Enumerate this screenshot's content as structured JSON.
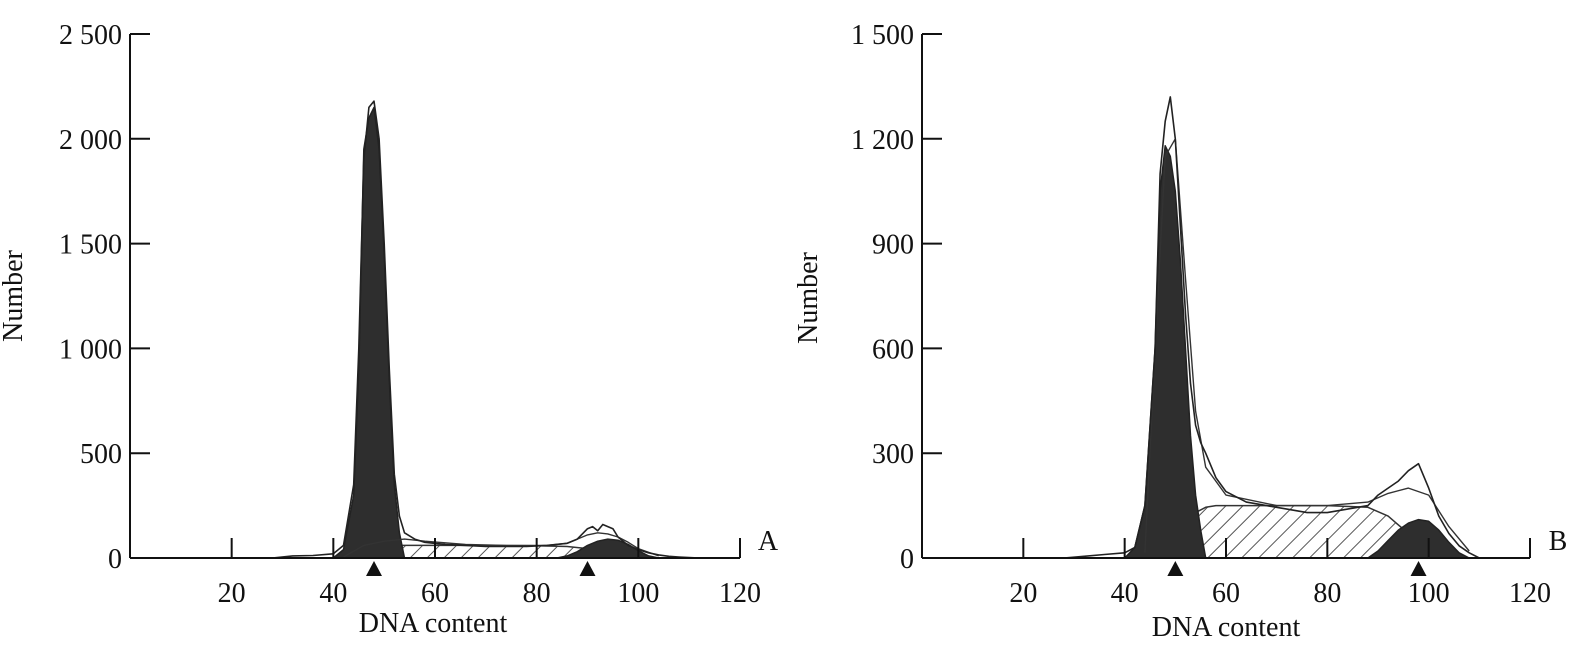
{
  "chart_data": [
    {
      "type": "area",
      "panel_label": "A",
      "xlabel": "DNA content",
      "ylabel": "Number",
      "xlim": [
        0,
        120
      ],
      "ylim": [
        0,
        2500
      ],
      "x_ticks": [
        20,
        40,
        60,
        80,
        100,
        120
      ],
      "y_ticks": [
        0,
        500,
        1000,
        1500,
        2000,
        2500
      ],
      "x_tick_labels": [
        "20",
        "40",
        "60",
        "80",
        "100",
        "120"
      ],
      "y_tick_labels": [
        "0",
        "500",
        "1 000",
        "1 500",
        "2 000",
        "2 500"
      ],
      "peak_markers": [
        48,
        90
      ],
      "series": [
        {
          "role": "histogram",
          "x": [
            28,
            32,
            36,
            40,
            42,
            44,
            45,
            46,
            47,
            48,
            49,
            50,
            51,
            52,
            53,
            54,
            56,
            58,
            62,
            66,
            70,
            74,
            78,
            82,
            86,
            88,
            90,
            91,
            92,
            93,
            94,
            95,
            96,
            97,
            98,
            100,
            102,
            104,
            106,
            108,
            112
          ],
          "y": [
            0,
            10,
            12,
            20,
            60,
            350,
            1000,
            1900,
            2150,
            2180,
            2000,
            1500,
            900,
            400,
            200,
            120,
            90,
            75,
            65,
            60,
            55,
            55,
            55,
            60,
            70,
            90,
            140,
            150,
            130,
            160,
            150,
            140,
            100,
            80,
            60,
            40,
            25,
            15,
            8,
            5,
            0
          ]
        },
        {
          "role": "g1-peak",
          "x": [
            40,
            42,
            44,
            45,
            46,
            47,
            48,
            49,
            50,
            51,
            52,
            53,
            54
          ],
          "y": [
            0,
            40,
            300,
            900,
            1950,
            2100,
            2150,
            1950,
            1450,
            850,
            350,
            120,
            0
          ]
        },
        {
          "role": "s-phase",
          "x": [
            44,
            46,
            48,
            50,
            52,
            54,
            56,
            60,
            70,
            80,
            86,
            90,
            94,
            98
          ],
          "y": [
            0,
            20,
            40,
            55,
            60,
            60,
            60,
            60,
            60,
            58,
            55,
            45,
            20,
            0
          ]
        },
        {
          "role": "g2-peak",
          "x": [
            84,
            86,
            88,
            90,
            92,
            94,
            96,
            98,
            100,
            102,
            104
          ],
          "y": [
            0,
            10,
            30,
            60,
            80,
            90,
            85,
            65,
            35,
            10,
            0
          ]
        },
        {
          "role": "fit-envelope",
          "x": [
            42,
            46,
            50,
            54,
            58,
            66,
            74,
            82,
            86,
            88,
            90,
            92,
            94,
            96,
            98,
            100,
            104
          ],
          "y": [
            5,
            60,
            80,
            90,
            80,
            65,
            60,
            60,
            70,
            90,
            110,
            120,
            115,
            100,
            75,
            45,
            10
          ]
        }
      ]
    },
    {
      "type": "area",
      "panel_label": "B",
      "xlabel": "DNA content",
      "ylabel": "Number",
      "xlim": [
        0,
        120
      ],
      "ylim": [
        0,
        1500
      ],
      "x_ticks": [
        20,
        40,
        60,
        80,
        100,
        120
      ],
      "y_ticks": [
        0,
        300,
        600,
        900,
        1200,
        1500
      ],
      "x_tick_labels": [
        "20",
        "40",
        "60",
        "80",
        "100",
        "120"
      ],
      "y_tick_labels": [
        "0",
        "300",
        "600",
        "900",
        "1 200",
        "1 500"
      ],
      "peak_markers": [
        50,
        98
      ],
      "series": [
        {
          "role": "histogram",
          "x": [
            28,
            32,
            36,
            40,
            42,
            44,
            46,
            47,
            48,
            49,
            50,
            51,
            52,
            53,
            54,
            55,
            56,
            58,
            60,
            64,
            68,
            72,
            76,
            80,
            84,
            88,
            90,
            92,
            94,
            96,
            98,
            100,
            102,
            104,
            106,
            108,
            110
          ],
          "y": [
            0,
            5,
            10,
            15,
            30,
            150,
            600,
            1100,
            1250,
            1320,
            1200,
            950,
            700,
            500,
            380,
            330,
            300,
            230,
            190,
            160,
            150,
            140,
            130,
            130,
            140,
            150,
            180,
            200,
            220,
            250,
            270,
            200,
            120,
            70,
            35,
            15,
            0
          ]
        },
        {
          "role": "g1-peak",
          "x": [
            40,
            42,
            44,
            46,
            47,
            48,
            49,
            50,
            51,
            52,
            53,
            54,
            55,
            56
          ],
          "y": [
            0,
            30,
            150,
            600,
            1050,
            1180,
            1150,
            1050,
            850,
            600,
            350,
            180,
            80,
            0
          ]
        },
        {
          "role": "s-phase",
          "x": [
            46,
            48,
            50,
            52,
            54,
            56,
            58,
            60,
            70,
            80,
            88,
            92,
            96,
            100,
            104
          ],
          "y": [
            0,
            30,
            70,
            110,
            130,
            145,
            150,
            150,
            150,
            150,
            145,
            120,
            70,
            20,
            0
          ]
        },
        {
          "role": "g2-peak",
          "x": [
            88,
            90,
            92,
            94,
            96,
            98,
            100,
            102,
            104,
            106,
            108
          ],
          "y": [
            0,
            20,
            50,
            80,
            100,
            110,
            105,
            80,
            45,
            15,
            0
          ]
        },
        {
          "role": "fit-envelope",
          "x": [
            44,
            46,
            48,
            50,
            52,
            54,
            56,
            60,
            70,
            80,
            88,
            92,
            96,
            100,
            104,
            108
          ],
          "y": [
            15,
            600,
            1150,
            1200,
            800,
            420,
            260,
            180,
            150,
            150,
            160,
            185,
            200,
            180,
            90,
            20
          ]
        }
      ]
    }
  ]
}
